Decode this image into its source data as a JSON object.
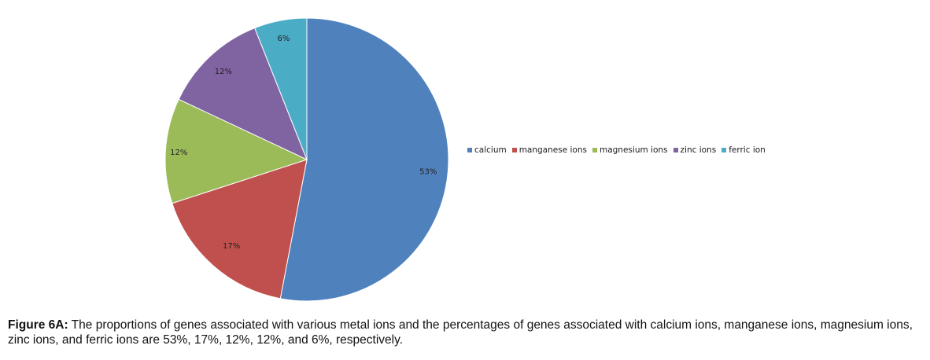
{
  "chart_data": {
    "type": "pie",
    "slices": [
      {
        "label": "calcium",
        "value": 53,
        "value_label": "53%",
        "color": "#4F81BD"
      },
      {
        "label": "manganese ions",
        "value": 17,
        "value_label": "17%",
        "color": "#C0504D"
      },
      {
        "label": "magnesium ions",
        "value": 12,
        "value_label": "12%",
        "color": "#9BBB59"
      },
      {
        "label": "zinc ions",
        "value": 12,
        "value_label": "12%",
        "color": "#8064A2"
      },
      {
        "label": "ferric ion",
        "value": 6,
        "value_label": "6%",
        "color": "#4BACC6"
      }
    ],
    "legend_position": "right"
  },
  "caption": {
    "label": "Figure 6A:",
    "text": " The proportions of genes associated with various metal ions and the percentages of genes associated with calcium ions, manganese ions, magnesium ions, zinc ions, and ferric ions are 53%, 17%, 12%, 12%, and 6%, respectively."
  }
}
